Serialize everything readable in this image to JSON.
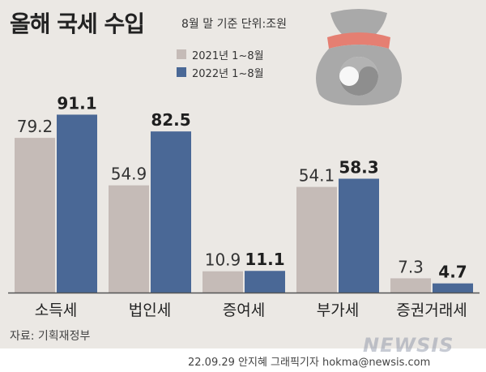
{
  "title": "올해 국세 수입",
  "subtitle": "8월 말 기준 단위:조원",
  "colors": {
    "y2021": "#c5bbb7",
    "y2022": "#4a6896",
    "background": "#ebe8e4"
  },
  "chart_data": {
    "type": "bar",
    "categories": [
      "소득세",
      "법인세",
      "증여세",
      "부가세",
      "증권거래세"
    ],
    "series": [
      {
        "name": "2021년 1~8월",
        "values": [
          79.2,
          54.9,
          10.9,
          54.1,
          7.3
        ]
      },
      {
        "name": "2022년 1~8월",
        "values": [
          91.1,
          82.5,
          11.1,
          58.3,
          4.7
        ]
      }
    ],
    "ylim": [
      0,
      100
    ],
    "legend_position": "top-left",
    "grid": false
  },
  "footer": {
    "source": "자료: 기획재정부",
    "credit": "22.09.29 안지혜 그래픽기자 hokma@newsis.com",
    "watermark": "NEWSIS"
  }
}
